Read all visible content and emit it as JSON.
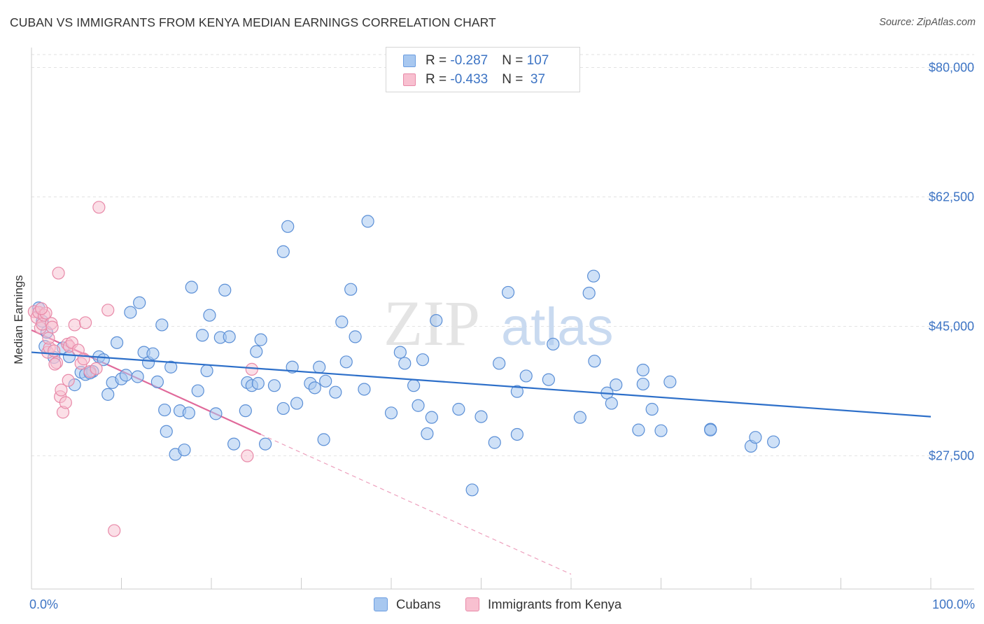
{
  "title": "CUBAN VS IMMIGRANTS FROM KENYA MEDIAN EARNINGS CORRELATION CHART",
  "source": "Source: ZipAtlas.com",
  "watermark": {
    "zip": "ZIP",
    "atlas": "atlas"
  },
  "legend": {
    "rows": [
      {
        "r_label": "R = ",
        "r_value": "-0.287",
        "n_label": "N = ",
        "n_value": "107",
        "color": "#a8c8f0",
        "stroke": "#6b9de0"
      },
      {
        "r_label": "R = ",
        "r_value": "-0.433",
        "n_label": "N = ",
        "n_value": " 37",
        "color": "#f8c0d0",
        "stroke": "#e889a8"
      }
    ]
  },
  "bottom_legend": {
    "cubans": "Cubans",
    "kenya": "Immigrants from Kenya"
  },
  "chart_data": {
    "type": "scatter",
    "title": "CUBAN VS IMMIGRANTS FROM KENYA MEDIAN EARNINGS CORRELATION CHART",
    "xlabel": "",
    "ylabel": "Median Earnings",
    "x_tick_labels": [
      "0.0%",
      "100.0%"
    ],
    "y_tick_labels": [
      "$80,000",
      "$62,500",
      "$45,000",
      "$27,500"
    ],
    "y_ticks": [
      80000,
      62500,
      45000,
      27500
    ],
    "xlim": [
      0,
      100
    ],
    "ylim": [
      9500,
      82500
    ],
    "grid": true,
    "legend_position": "top-center",
    "series": [
      {
        "name": "Cubans",
        "color": "#a8c8f0",
        "stroke": "#5b8fd6",
        "trend": {
          "x": [
            0,
            100
          ],
          "y": [
            41500,
            32800
          ],
          "color": "#2d6fc9"
        },
        "points": [
          [
            0.8,
            47500
          ],
          [
            1.2,
            45700
          ],
          [
            1.5,
            42300
          ],
          [
            1.7,
            44200
          ],
          [
            2.5,
            40800
          ],
          [
            3.5,
            42100
          ],
          [
            4.2,
            40900
          ],
          [
            4.8,
            37100
          ],
          [
            5.5,
            38800
          ],
          [
            6.0,
            38500
          ],
          [
            6.8,
            38900
          ],
          [
            7.5,
            40900
          ],
          [
            8.0,
            40500
          ],
          [
            8.5,
            35800
          ],
          [
            9.0,
            37400
          ],
          [
            9.5,
            42800
          ],
          [
            10.0,
            37900
          ],
          [
            10.5,
            38400
          ],
          [
            11.0,
            46900
          ],
          [
            12.0,
            48200
          ],
          [
            12.5,
            41500
          ],
          [
            13.0,
            40100
          ],
          [
            13.5,
            41300
          ],
          [
            14.0,
            37500
          ],
          [
            14.5,
            45200
          ],
          [
            15.0,
            30800
          ],
          [
            15.5,
            39500
          ],
          [
            16.0,
            27700
          ],
          [
            16.5,
            33600
          ],
          [
            17.0,
            28300
          ],
          [
            17.5,
            33300
          ],
          [
            17.8,
            50300
          ],
          [
            18.5,
            36300
          ],
          [
            19.0,
            43800
          ],
          [
            19.5,
            39000
          ],
          [
            19.8,
            46500
          ],
          [
            20.5,
            33200
          ],
          [
            21.0,
            43500
          ],
          [
            21.5,
            49900
          ],
          [
            22.0,
            43600
          ],
          [
            22.5,
            29100
          ],
          [
            23.8,
            33600
          ],
          [
            24.0,
            37400
          ],
          [
            24.5,
            37000
          ],
          [
            25.0,
            41600
          ],
          [
            25.5,
            43200
          ],
          [
            26.0,
            29100
          ],
          [
            27.0,
            37000
          ],
          [
            28.0,
            33900
          ],
          [
            28.5,
            58500
          ],
          [
            28.0,
            55100
          ],
          [
            29.0,
            39500
          ],
          [
            29.5,
            34600
          ],
          [
            31.0,
            37300
          ],
          [
            31.5,
            36700
          ],
          [
            32.0,
            39500
          ],
          [
            32.5,
            29700
          ],
          [
            32.7,
            37600
          ],
          [
            33.8,
            36100
          ],
          [
            34.5,
            45600
          ],
          [
            35.0,
            40200
          ],
          [
            35.5,
            50000
          ],
          [
            36.0,
            43600
          ],
          [
            37.0,
            36500
          ],
          [
            37.4,
            59200
          ],
          [
            40.0,
            33300
          ],
          [
            41.0,
            41500
          ],
          [
            41.5,
            40000
          ],
          [
            42.5,
            37000
          ],
          [
            43.0,
            34300
          ],
          [
            43.5,
            40500
          ],
          [
            44.0,
            30500
          ],
          [
            44.5,
            32700
          ],
          [
            45.0,
            45800
          ],
          [
            47.5,
            33800
          ],
          [
            49.0,
            22900
          ],
          [
            50.0,
            32800
          ],
          [
            51.5,
            29300
          ],
          [
            52.0,
            40000
          ],
          [
            53.0,
            49600
          ],
          [
            54.0,
            30400
          ],
          [
            54.0,
            36200
          ],
          [
            55.0,
            38300
          ],
          [
            57.5,
            37800
          ],
          [
            58.0,
            42600
          ],
          [
            61.0,
            32700
          ],
          [
            62.0,
            49500
          ],
          [
            62.5,
            51800
          ],
          [
            62.6,
            40300
          ],
          [
            64.0,
            36000
          ],
          [
            64.5,
            34600
          ],
          [
            65.0,
            37100
          ],
          [
            67.5,
            31000
          ],
          [
            68.0,
            39100
          ],
          [
            68.0,
            37200
          ],
          [
            69.0,
            33800
          ],
          [
            70.0,
            30900
          ],
          [
            71.0,
            37500
          ],
          [
            75.5,
            31100
          ],
          [
            80.0,
            28800
          ],
          [
            80.5,
            30000
          ],
          [
            82.5,
            29400
          ],
          [
            75.5,
            31000
          ],
          [
            6.5,
            38700
          ],
          [
            11.8,
            38200
          ],
          [
            14.8,
            33700
          ],
          [
            25.2,
            37300
          ]
        ]
      },
      {
        "name": "Immigrants from Kenya",
        "color": "#f8c0d0",
        "stroke": "#e889a8",
        "trend": {
          "x": [
            0,
            25.5
          ],
          "y": [
            44500,
            30400
          ],
          "dash_to": [
            60,
            11500
          ],
          "color": "#e0699a"
        },
        "points": [
          [
            0.3,
            47000
          ],
          [
            0.6,
            46200
          ],
          [
            0.8,
            46900
          ],
          [
            1.0,
            44800
          ],
          [
            1.2,
            45300
          ],
          [
            1.4,
            46500
          ],
          [
            1.6,
            46800
          ],
          [
            1.8,
            41500
          ],
          [
            2.0,
            42100
          ],
          [
            2.2,
            45400
          ],
          [
            2.5,
            41700
          ],
          [
            2.8,
            40100
          ],
          [
            3.0,
            52200
          ],
          [
            3.2,
            35500
          ],
          [
            3.5,
            33400
          ],
          [
            3.8,
            34700
          ],
          [
            4.0,
            42600
          ],
          [
            4.2,
            42300
          ],
          [
            4.5,
            42800
          ],
          [
            4.8,
            45200
          ],
          [
            5.2,
            41800
          ],
          [
            5.5,
            40000
          ],
          [
            6.0,
            45500
          ],
          [
            6.5,
            38900
          ],
          [
            7.2,
            39300
          ],
          [
            7.5,
            61100
          ],
          [
            8.5,
            47200
          ],
          [
            9.2,
            17400
          ],
          [
            24.5,
            39200
          ],
          [
            24.0,
            27500
          ],
          [
            1.9,
            43400
          ],
          [
            2.6,
            39900
          ],
          [
            3.3,
            36400
          ],
          [
            1.1,
            47400
          ],
          [
            2.3,
            44900
          ],
          [
            4.1,
            37700
          ],
          [
            5.8,
            40600
          ]
        ]
      }
    ]
  }
}
